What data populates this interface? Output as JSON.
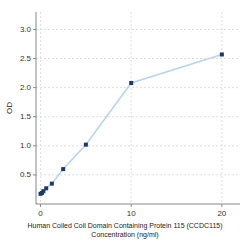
{
  "chart_data": {
    "type": "line",
    "xlabel": "Human Coiled Coil Domain Containing Protein 115 (CCDC115)\nConcentration (ng/ml)",
    "ylabel": "OD",
    "x": [
      0,
      0.156,
      0.313,
      0.625,
      1.25,
      2.5,
      5,
      10,
      20
    ],
    "values": [
      0.175,
      0.19,
      0.22,
      0.27,
      0.35,
      0.6,
      1.02,
      2.08,
      2.57
    ],
    "color": "#b8d4e8",
    "colors": [
      "#1a3a6b",
      "#1a3a6b",
      "#1a3a6b",
      "#1a3a6b",
      "#1a3a6b",
      "#1a3a6b",
      "#1a3a6b",
      "#1a3a6b",
      "#1a3a6b"
    ],
    "marker": "square",
    "line_style": "solid",
    "xlim": [
      -0.5,
      22
    ],
    "ylim": [
      0,
      3.3
    ],
    "xticks": [
      0,
      10,
      20
    ],
    "yticks": [
      0.5,
      {
        "value": 1.0,
        "label": "1.0"
      },
      1.5,
      {
        "value": 2.0,
        "label": "2.0"
      },
      2.5,
      {
        "value": 3.0,
        "label": "3.0"
      }
    ],
    "grid": true
  }
}
